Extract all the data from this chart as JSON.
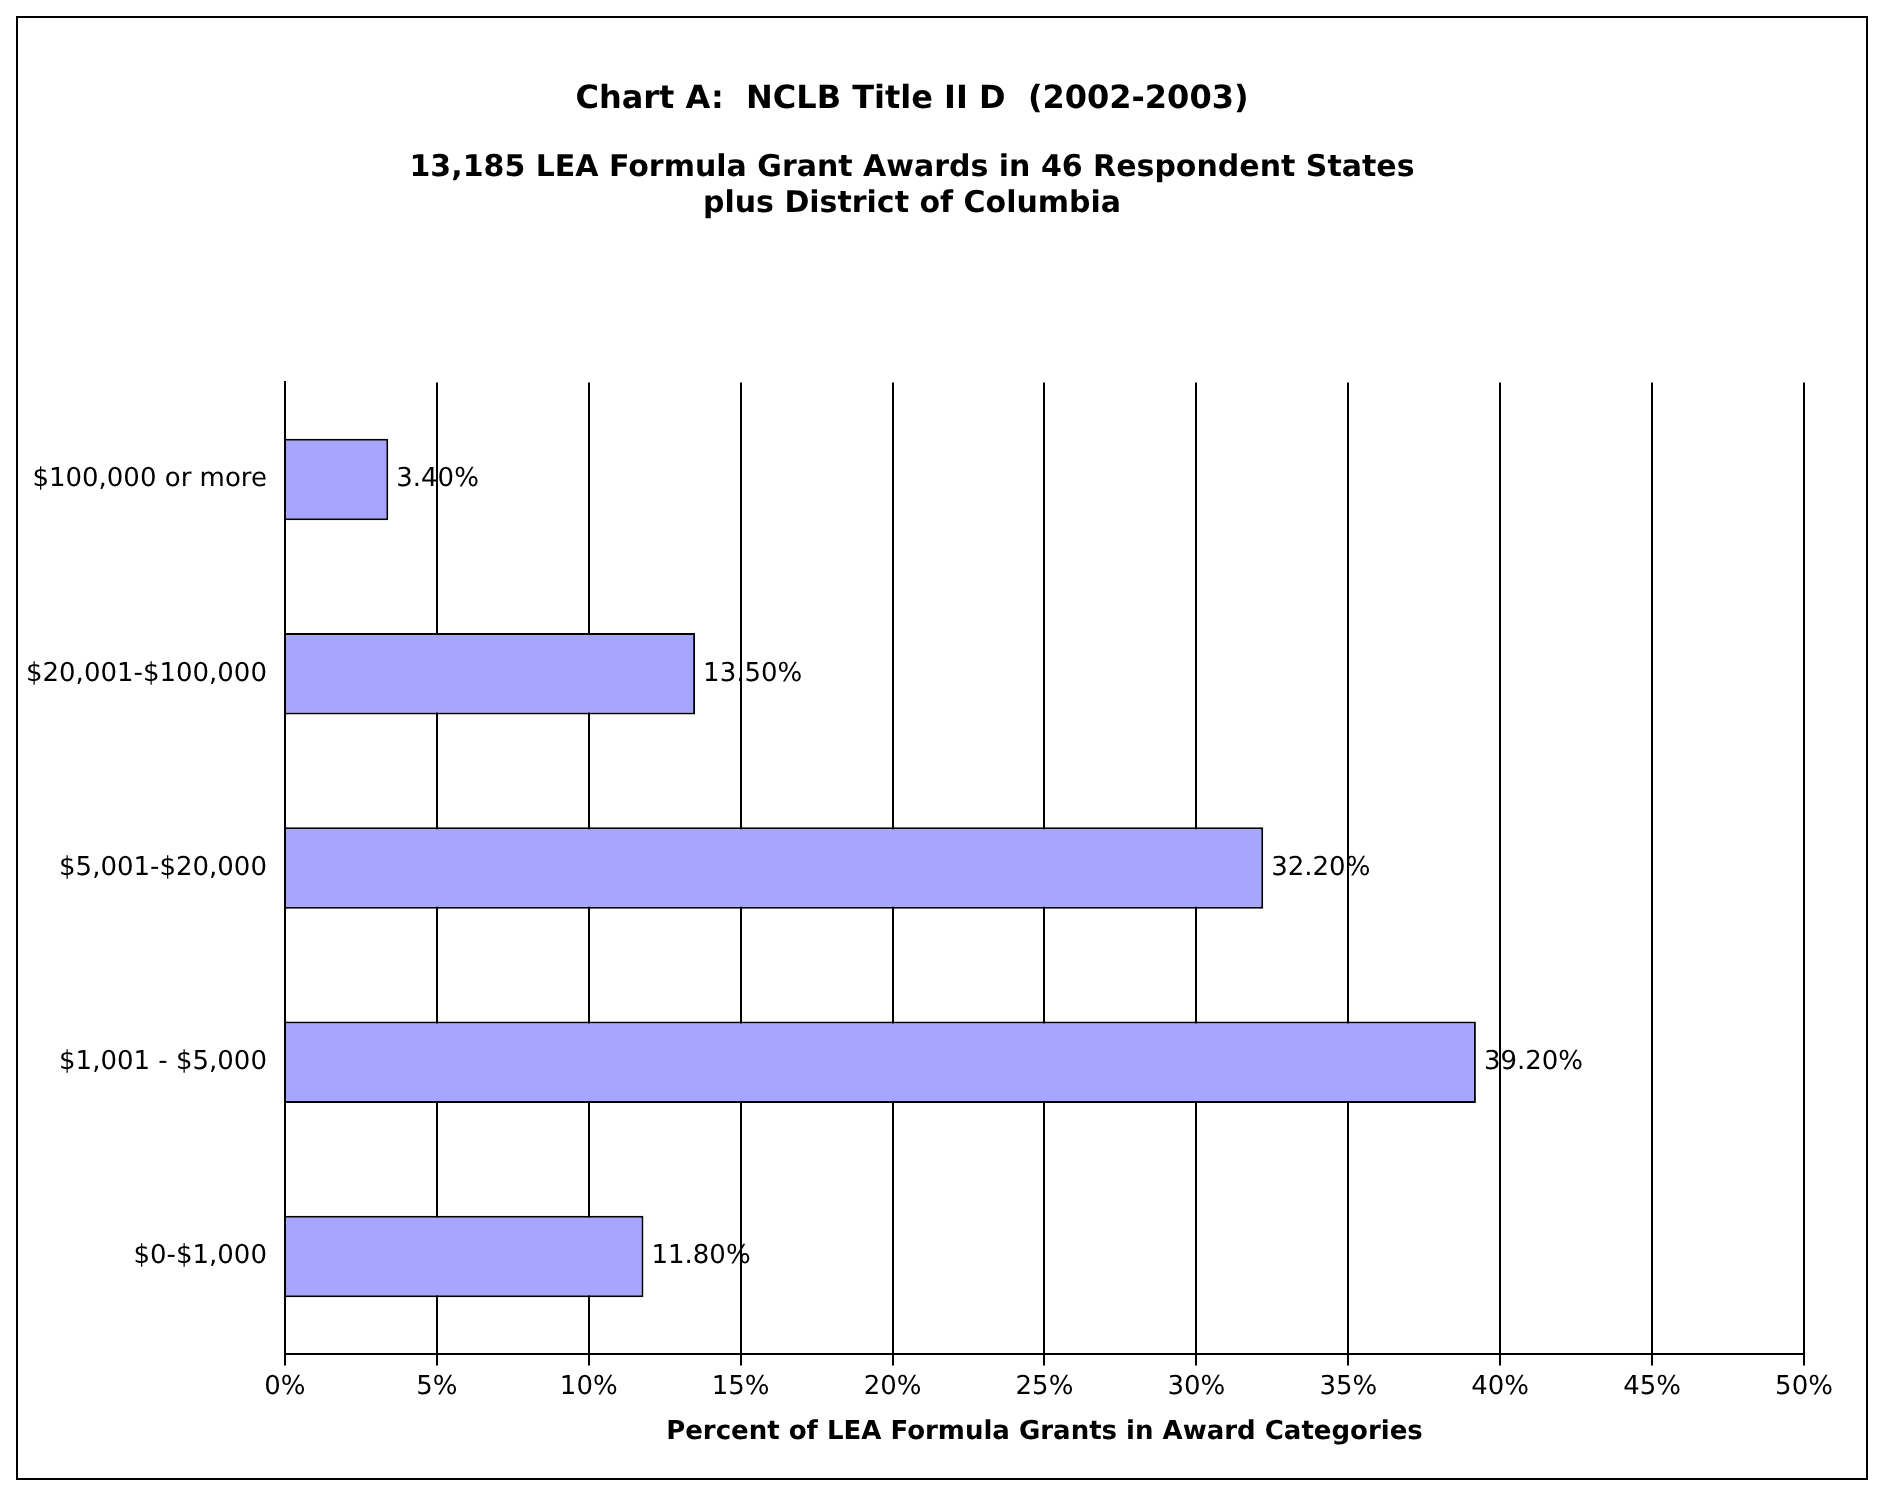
{
  "chart_data": {
    "type": "bar",
    "orientation": "horizontal",
    "title": "Chart A:  NCLB Title II D  (2002-2003)",
    "subtitle": "13,185 LEA Formula Grant Awards in 46 Respondent States\nplus District of Columbia",
    "xlabel": "Percent of LEA Formula Grants in Award Categories",
    "categories": [
      "$100,000 or more",
      "$20,001-$100,000",
      "$5,001-$20,000",
      "$1,001 - $5,000",
      "$0-$1,000"
    ],
    "values": [
      3.4,
      13.5,
      32.2,
      39.2,
      11.8
    ],
    "value_labels": [
      "3.40%",
      "13.50%",
      "32.20%",
      "39.20%",
      "11.80%"
    ],
    "color": "#a6a6ff",
    "xlim": [
      0,
      50
    ],
    "xticks": [
      {
        "value": 0,
        "label": "0%"
      },
      {
        "value": 5,
        "label": "5%"
      },
      {
        "value": 10,
        "label": "10%"
      },
      {
        "value": 15,
        "label": "15%"
      },
      {
        "value": 20,
        "label": "20%"
      },
      {
        "value": 25,
        "label": "25%"
      },
      {
        "value": 30,
        "label": "30%"
      },
      {
        "value": 35,
        "label": "35%"
      },
      {
        "value": 40,
        "label": "40%"
      },
      {
        "value": 45,
        "label": "45%"
      },
      {
        "value": 50,
        "label": "50%"
      }
    ],
    "grid": "x",
    "legend": false
  }
}
